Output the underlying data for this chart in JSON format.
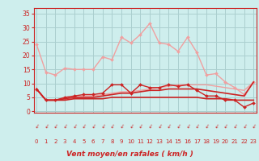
{
  "x": [
    0,
    1,
    2,
    3,
    4,
    5,
    6,
    7,
    8,
    9,
    10,
    11,
    12,
    13,
    14,
    15,
    16,
    17,
    18,
    19,
    20,
    21,
    22,
    23
  ],
  "series": [
    {
      "name": "rafales_light",
      "color": "#f0a0a0",
      "linewidth": 1.0,
      "marker": "D",
      "markersize": 2.0,
      "values": [
        24,
        14,
        13,
        15.5,
        15,
        15,
        15,
        19.5,
        18.5,
        26.5,
        24.5,
        27.5,
        31.5,
        24.5,
        24,
        21.5,
        26.5,
        21,
        13,
        13.5,
        10.5,
        8.5,
        6,
        10.5
      ]
    },
    {
      "name": "moyen_light",
      "color": "#f0a0a0",
      "linewidth": 1.0,
      "marker": null,
      "markersize": 0,
      "values": [
        8,
        4,
        4,
        4.5,
        5,
        5.5,
        5.5,
        6,
        6.5,
        7,
        7,
        7.5,
        8,
        8.5,
        9,
        9.5,
        9.5,
        9.5,
        9.5,
        9,
        8.5,
        8,
        7.5,
        10.5
      ]
    },
    {
      "name": "rafales_dark",
      "color": "#cc2222",
      "linewidth": 1.0,
      "marker": "D",
      "markersize": 2.0,
      "values": [
        8,
        4,
        4,
        5,
        5.5,
        6,
        6,
        6.5,
        9.5,
        9.5,
        6.5,
        9.5,
        8.5,
        8.5,
        9.5,
        9,
        9.5,
        7.5,
        5.5,
        5.5,
        4,
        4,
        1.5,
        3
      ]
    },
    {
      "name": "moyen_dark1",
      "color": "#cc2222",
      "linewidth": 1.2,
      "marker": null,
      "markersize": 0,
      "values": [
        8,
        4,
        4,
        4,
        4.5,
        4.5,
        4.5,
        4.5,
        5,
        5,
        5,
        5,
        5,
        5,
        5,
        5,
        5,
        5,
        4.5,
        4.5,
        4.5,
        4,
        4,
        4
      ]
    },
    {
      "name": "moyen_dark2",
      "color": "#cc2222",
      "linewidth": 1.2,
      "marker": null,
      "markersize": 0,
      "values": [
        8,
        4,
        4,
        4.5,
        5,
        5,
        5,
        5.5,
        6,
        6.5,
        6.5,
        7,
        7.5,
        7.5,
        8,
        8,
        8,
        8,
        7.5,
        7,
        6.5,
        6,
        5.5,
        10.5
      ]
    }
  ],
  "xlabel": "Vent moyen/en rafales ( km/h )",
  "yticks": [
    0,
    5,
    10,
    15,
    20,
    25,
    30,
    35
  ],
  "xticks": [
    0,
    1,
    2,
    3,
    4,
    5,
    6,
    7,
    8,
    9,
    10,
    11,
    12,
    13,
    14,
    15,
    16,
    17,
    18,
    19,
    20,
    21,
    22,
    23
  ],
  "ylim": [
    -0.5,
    37
  ],
  "xlim": [
    -0.3,
    23.3
  ],
  "background_color": "#ceeeed",
  "grid_color": "#aacfcf",
  "axis_color": "#cc2222",
  "xlabel_color": "#cc2222",
  "tick_color": "#cc2222",
  "arrow_color": "#cc2222"
}
